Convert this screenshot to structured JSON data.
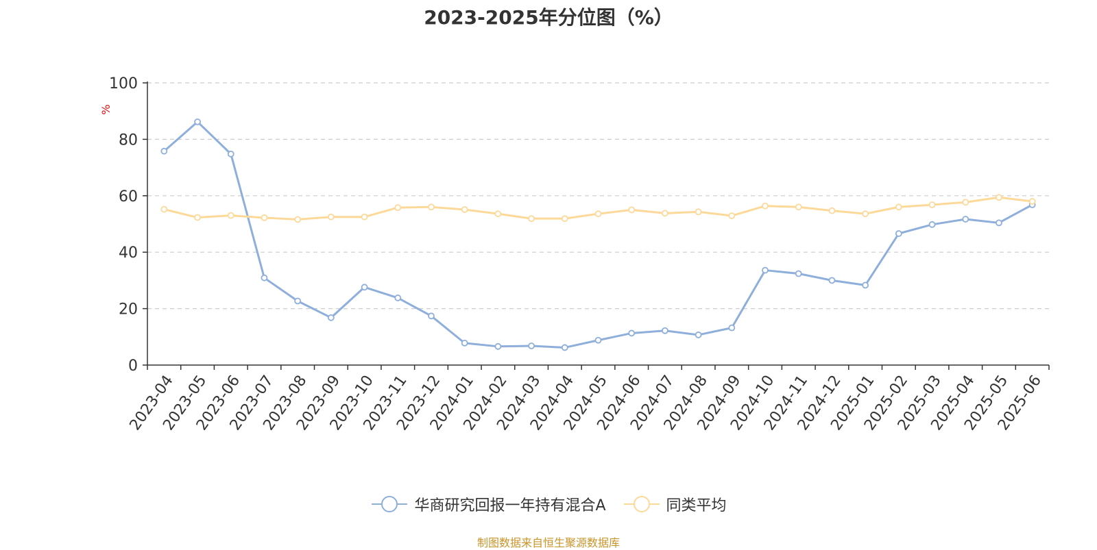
{
  "chart_data": {
    "type": "line",
    "title": "2023-2025年分位图（%）",
    "ylabel": "%",
    "xlabel": "",
    "ylim": [
      0,
      100
    ],
    "yticks": [
      0,
      20,
      40,
      60,
      80,
      100
    ],
    "grid": true,
    "legend_position": "bottom",
    "categories": [
      "2023-04",
      "2023-05",
      "2023-06",
      "2023-07",
      "2023-08",
      "2023-09",
      "2023-10",
      "2023-11",
      "2023-12",
      "2024-01",
      "2024-02",
      "2024-03",
      "2024-04",
      "2024-05",
      "2024-06",
      "2024-07",
      "2024-08",
      "2024-09",
      "2024-10",
      "2024-11",
      "2024-12",
      "2025-01",
      "2025-02",
      "2025-03",
      "2025-04",
      "2025-05",
      "2025-06"
    ],
    "series": [
      {
        "name": "华商研究回报一年持有混合A",
        "color": "#8eaedb",
        "values": [
          75.8,
          86.2,
          74.8,
          30.9,
          22.7,
          16.8,
          27.6,
          23.8,
          17.4,
          7.8,
          6.6,
          6.8,
          6.2,
          8.8,
          11.3,
          12.2,
          10.7,
          13.2,
          33.6,
          32.4,
          30.0,
          28.3,
          46.6,
          49.8,
          51.7,
          50.4,
          56.8
        ]
      },
      {
        "name": "同类平均",
        "color": "#fcd999",
        "values": [
          55.2,
          52.3,
          53.0,
          52.2,
          51.6,
          52.5,
          52.5,
          55.8,
          56.0,
          55.1,
          53.6,
          51.9,
          51.9,
          53.6,
          55.0,
          53.8,
          54.3,
          52.9,
          56.4,
          56.0,
          54.7,
          53.6,
          56.0,
          56.8,
          57.7,
          59.4,
          58.0
        ]
      }
    ]
  },
  "source_text": "制图数据来自恒生聚源数据库"
}
